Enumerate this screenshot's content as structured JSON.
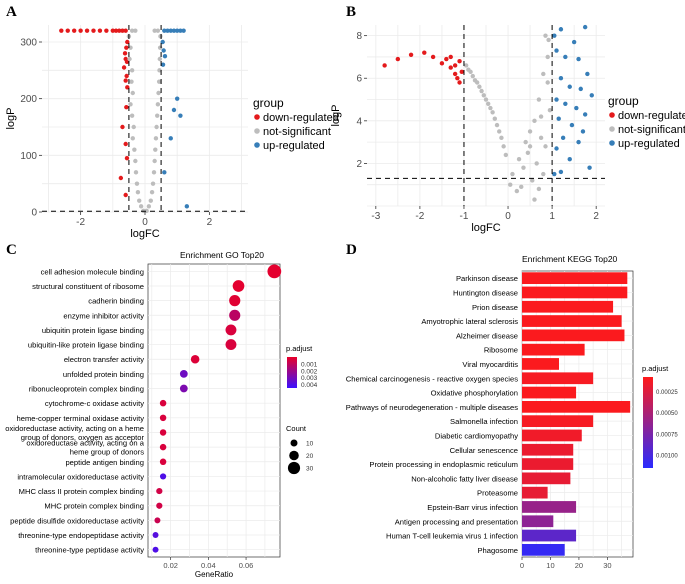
{
  "panels": {
    "A": "A",
    "B": "B",
    "C": "C",
    "D": "D"
  },
  "legend_common": {
    "title": "group",
    "items": [
      "down-regulated",
      "not-significant",
      "up-regulated"
    ],
    "colors": [
      "#e41a1c",
      "#bdbdbd",
      "#377eb8"
    ]
  },
  "chart_data": [
    {
      "id": "A",
      "type": "scatter",
      "title": "",
      "xlabel": "logFC",
      "ylabel": "logP",
      "xlim": [
        -3.2,
        3.2
      ],
      "ylim": [
        0,
        330
      ],
      "xticks": [
        -2,
        0,
        2
      ],
      "yticks": [
        0,
        100,
        200,
        300
      ],
      "thresholds": {
        "x": [
          -0.5,
          0.5
        ],
        "y": 1.3
      },
      "grid": true,
      "legend": "right",
      "series": [
        {
          "name": "down-regulated",
          "color": "#e41a1c",
          "points": [
            [
              -2.6,
              320
            ],
            [
              -2.4,
              320
            ],
            [
              -2.2,
              320
            ],
            [
              -2.0,
              320
            ],
            [
              -1.8,
              320
            ],
            [
              -1.6,
              320
            ],
            [
              -1.4,
              320
            ],
            [
              -1.2,
              320
            ],
            [
              -1.0,
              320
            ],
            [
              -0.9,
              320
            ],
            [
              -0.8,
              320
            ],
            [
              -0.7,
              320
            ],
            [
              -0.6,
              320
            ],
            [
              -0.55,
              300
            ],
            [
              -0.58,
              290
            ],
            [
              -0.62,
              280
            ],
            [
              -0.6,
              270
            ],
            [
              -0.56,
              265
            ],
            [
              -0.65,
              255
            ],
            [
              -0.57,
              240
            ],
            [
              -0.6,
              232
            ],
            [
              -0.55,
              220
            ],
            [
              -0.58,
              185
            ],
            [
              -0.7,
              150
            ],
            [
              -0.6,
              120
            ],
            [
              -0.56,
              95
            ],
            [
              -0.75,
              60
            ],
            [
              -0.6,
              30
            ]
          ]
        },
        {
          "name": "not-significant",
          "color": "#bdbdbd",
          "points": [
            [
              -0.5,
              310
            ],
            [
              -0.45,
              290
            ],
            [
              -0.48,
              270
            ],
            [
              -0.4,
              250
            ],
            [
              -0.42,
              230
            ],
            [
              -0.38,
              210
            ],
            [
              -0.45,
              190
            ],
            [
              -0.4,
              170
            ],
            [
              -0.35,
              150
            ],
            [
              -0.38,
              130
            ],
            [
              -0.33,
              110
            ],
            [
              -0.3,
              90
            ],
            [
              -0.28,
              70
            ],
            [
              -0.25,
              50
            ],
            [
              -0.22,
              35
            ],
            [
              -0.18,
              20
            ],
            [
              -0.12,
              10
            ],
            [
              -0.05,
              2
            ],
            [
              0.05,
              2
            ],
            [
              0.12,
              10
            ],
            [
              0.18,
              20
            ],
            [
              0.22,
              35
            ],
            [
              0.25,
              50
            ],
            [
              0.28,
              70
            ],
            [
              0.3,
              90
            ],
            [
              0.32,
              110
            ],
            [
              0.34,
              130
            ],
            [
              0.36,
              150
            ],
            [
              0.38,
              170
            ],
            [
              0.4,
              190
            ],
            [
              0.42,
              210
            ],
            [
              0.44,
              230
            ],
            [
              0.45,
              250
            ],
            [
              0.46,
              270
            ],
            [
              0.47,
              290
            ],
            [
              0.48,
              310
            ],
            [
              0.3,
              320
            ],
            [
              0.4,
              320
            ],
            [
              -0.3,
              320
            ],
            [
              -0.4,
              320
            ]
          ]
        },
        {
          "name": "up-regulated",
          "color": "#377eb8",
          "points": [
            [
              0.6,
              320
            ],
            [
              0.7,
              320
            ],
            [
              0.8,
              320
            ],
            [
              0.9,
              320
            ],
            [
              1.0,
              320
            ],
            [
              1.1,
              320
            ],
            [
              1.2,
              320
            ],
            [
              0.55,
              300
            ],
            [
              0.58,
              285
            ],
            [
              0.62,
              275
            ],
            [
              0.56,
              260
            ],
            [
              1.0,
              200
            ],
            [
              0.9,
              180
            ],
            [
              1.1,
              170
            ],
            [
              0.8,
              130
            ],
            [
              0.6,
              70
            ],
            [
              1.3,
              10
            ]
          ]
        }
      ]
    },
    {
      "id": "B",
      "type": "scatter",
      "title": "",
      "xlabel": "logFC",
      "ylabel": "logP",
      "xlim": [
        -3.2,
        2.2
      ],
      "ylim": [
        0,
        8.5
      ],
      "xticks": [
        -3,
        -2,
        -1,
        0,
        1,
        2
      ],
      "yticks": [
        2,
        4,
        6,
        8
      ],
      "thresholds": {
        "x": [
          -1,
          1
        ],
        "y": 1.3
      },
      "grid": true,
      "legend": "right",
      "series": [
        {
          "name": "down-regulated",
          "color": "#e41a1c",
          "points": [
            [
              -2.8,
              6.6
            ],
            [
              -2.5,
              6.9
            ],
            [
              -2.2,
              7.1
            ],
            [
              -1.9,
              7.2
            ],
            [
              -1.7,
              7.0
            ],
            [
              -1.5,
              6.7
            ],
            [
              -1.4,
              6.9
            ],
            [
              -1.3,
              6.5
            ],
            [
              -1.2,
              6.2
            ],
            [
              -1.1,
              6.8
            ],
            [
              -1.05,
              6.3
            ],
            [
              -1.2,
              6.6
            ],
            [
              -1.15,
              6.0
            ],
            [
              -1.3,
              7.0
            ],
            [
              -1.1,
              5.8
            ]
          ]
        },
        {
          "name": "not-significant",
          "color": "#bdbdbd",
          "points": [
            [
              -0.95,
              6.6
            ],
            [
              -0.9,
              6.4
            ],
            [
              -0.85,
              6.3
            ],
            [
              -0.8,
              6.1
            ],
            [
              -0.75,
              5.9
            ],
            [
              -0.7,
              5.8
            ],
            [
              -0.65,
              5.6
            ],
            [
              -0.6,
              5.4
            ],
            [
              -0.55,
              5.2
            ],
            [
              -0.5,
              5.0
            ],
            [
              -0.45,
              4.8
            ],
            [
              -0.4,
              4.6
            ],
            [
              -0.35,
              4.4
            ],
            [
              -0.3,
              4.1
            ],
            [
              -0.25,
              3.8
            ],
            [
              -0.2,
              3.5
            ],
            [
              -0.15,
              3.2
            ],
            [
              -0.1,
              2.8
            ],
            [
              -0.05,
              2.4
            ],
            [
              0.05,
              1.0
            ],
            [
              0.1,
              1.5
            ],
            [
              0.2,
              0.7
            ],
            [
              0.25,
              2.2
            ],
            [
              0.3,
              0.9
            ],
            [
              0.35,
              1.8
            ],
            [
              0.4,
              3.0
            ],
            [
              0.45,
              2.5
            ],
            [
              0.5,
              3.5
            ],
            [
              0.55,
              1.2
            ],
            [
              0.6,
              4.0
            ],
            [
              0.65,
              2.0
            ],
            [
              0.7,
              5.0
            ],
            [
              0.75,
              3.2
            ],
            [
              0.8,
              6.2
            ],
            [
              0.85,
              2.8
            ],
            [
              0.9,
              7.0
            ],
            [
              0.95,
              4.5
            ],
            [
              0.92,
              7.8
            ],
            [
              0.85,
              8.0
            ],
            [
              0.6,
              0.3
            ],
            [
              0.8,
              1.5
            ],
            [
              0.7,
              0.8
            ],
            [
              0.9,
              5.8
            ],
            [
              0.5,
              2.8
            ],
            [
              0.75,
              4.2
            ]
          ]
        },
        {
          "name": "up-regulated",
          "color": "#377eb8",
          "points": [
            [
              1.05,
              8.0
            ],
            [
              1.2,
              8.3
            ],
            [
              1.5,
              7.7
            ],
            [
              1.75,
              8.4
            ],
            [
              1.1,
              7.3
            ],
            [
              1.3,
              7.0
            ],
            [
              1.6,
              6.9
            ],
            [
              1.8,
              6.2
            ],
            [
              1.2,
              6.0
            ],
            [
              1.4,
              5.6
            ],
            [
              1.65,
              5.5
            ],
            [
              1.9,
              5.2
            ],
            [
              1.1,
              5.0
            ],
            [
              1.3,
              4.8
            ],
            [
              1.55,
              4.6
            ],
            [
              1.75,
              4.3
            ],
            [
              1.15,
              4.1
            ],
            [
              1.45,
              3.8
            ],
            [
              1.7,
              3.5
            ],
            [
              1.25,
              3.2
            ],
            [
              1.6,
              3.0
            ],
            [
              1.1,
              2.7
            ],
            [
              1.4,
              2.2
            ],
            [
              1.85,
              1.8
            ],
            [
              1.2,
              1.6
            ],
            [
              1.05,
              1.5
            ]
          ]
        }
      ]
    },
    {
      "id": "C",
      "type": "scatter",
      "title": "Enrichment GO Top20",
      "xlabel": "GeneRatio",
      "ylabel": "",
      "xlim": [
        0.008,
        0.078
      ],
      "xticks": [
        0.02,
        0.04,
        0.06
      ],
      "xtick_labels": [
        "0.02",
        "0.04",
        "0.06"
      ],
      "grid": true,
      "legend": "right",
      "color_legend": {
        "title": "p.adjust",
        "ticks": [
          "0.001",
          "0.002",
          "0.003",
          "0.004"
        ],
        "tick_values": [
          0.001,
          0.002,
          0.003,
          0.004
        ],
        "range": [
          0.0,
          0.0045
        ],
        "low_color": "#e8002a",
        "high_color": "#3b10ff"
      },
      "size_legend": {
        "title": "Count",
        "values": [
          10,
          20,
          30
        ],
        "labels": [
          "10",
          "20",
          "30"
        ]
      },
      "categories": [
        "cell adhesion molecule binding",
        "structural constituent of ribosome",
        "cadherin binding",
        "enzyme inhibitor activity",
        "ubiquitin protein ligase binding",
        "ubiquitin-like protein ligase binding",
        "electron transfer activity",
        "unfolded protein binding",
        "ribonucleoprotein complex binding",
        "cytochrome-c oxidase activity",
        "heme-copper terminal oxidase activity",
        "oxidoreductase activity, acting on a heme group of donors, oxygen as acceptor",
        "oxidoreductase activity, acting on a heme group of donors",
        "peptide antigen binding",
        "intramolecular oxidoreductase activity",
        "MHC class II protein complex binding",
        "MHC protein complex binding",
        "peptide disulfide oxidoreductase activity",
        "threonine-type endopeptidase activity",
        "threonine-type peptidase activity"
      ],
      "category_lines": [
        [
          "cell adhesion molecule binding"
        ],
        [
          "structural constituent of ribosome"
        ],
        [
          "cadherin binding"
        ],
        [
          "enzyme inhibitor activity"
        ],
        [
          "ubiquitin protein ligase binding"
        ],
        [
          "ubiquitin-like protein ligase binding"
        ],
        [
          "electron transfer activity"
        ],
        [
          "unfolded protein binding"
        ],
        [
          "ribonucleoprotein complex binding"
        ],
        [
          "cytochrome-c oxidase activity"
        ],
        [
          "heme-copper terminal oxidase activity"
        ],
        [
          "oxidoreductase activity, acting on a heme",
          "group of donors, oxygen as acceptor"
        ],
        [
          "oxidoreductase activity, acting on a",
          "heme group of donors"
        ],
        [
          "peptide antigen binding"
        ],
        [
          "intramolecular oxidoreductase activity"
        ],
        [
          "MHC class II protein complex binding"
        ],
        [
          "MHC protein complex binding"
        ],
        [
          "peptide disulfide oxidoreductase activity"
        ],
        [
          "threonine-type endopeptidase activity"
        ],
        [
          "threonine-type peptidase activity"
        ]
      ],
      "gene_ratio": [
        0.075,
        0.056,
        0.054,
        0.054,
        0.052,
        0.052,
        0.033,
        0.027,
        0.027,
        0.016,
        0.016,
        0.016,
        0.016,
        0.016,
        0.016,
        0.014,
        0.014,
        0.013,
        0.012,
        0.012
      ],
      "count": [
        36,
        28,
        26,
        26,
        25,
        25,
        16,
        13,
        13,
        8,
        8,
        8,
        8,
        8,
        7,
        7,
        7,
        6,
        6,
        6
      ],
      "p_adjust": [
        0.0001,
        0.0001,
        0.0002,
        0.0012,
        0.0004,
        0.0004,
        0.0003,
        0.0032,
        0.0028,
        0.0004,
        0.0004,
        0.0004,
        0.0004,
        0.0004,
        0.004,
        0.0006,
        0.0006,
        0.0008,
        0.0038,
        0.004
      ]
    },
    {
      "id": "D",
      "type": "bar",
      "orientation": "horizontal",
      "title": "Enrichment KEGG Top20",
      "xlabel": "",
      "ylabel": "",
      "xlim": [
        0,
        39
      ],
      "xticks": [
        0,
        10,
        20,
        30
      ],
      "grid": true,
      "legend": "right",
      "color_legend": {
        "title": "p.adjust",
        "ticks": [
          "0.00025",
          "0.00050",
          "0.00075",
          "0.00100"
        ],
        "tick_values": [
          0.00025,
          0.0005,
          0.00075,
          0.001
        ],
        "range": [
          8e-05,
          0.00115
        ],
        "low_color": "#ff1a1a",
        "high_color": "#2a2aff"
      },
      "categories": [
        "Parkinson disease",
        "Huntington disease",
        "Prion disease",
        "Amyotrophic lateral sclerosis",
        "Alzheimer disease",
        "Ribosome",
        "Viral myocarditis",
        "Chemical carcinogenesis - reactive oxygen species",
        "Oxidative phosphorylation",
        "Pathways of neurodegeneration - multiple diseases",
        "Salmonella infection",
        "Diabetic cardiomyopathy",
        "Cellular senescence",
        "Protein processing in endoplasmic reticulum",
        "Non-alcoholic fatty liver disease",
        "Proteasome",
        "Epstein-Barr virus infection",
        "Antigen processing and presentation",
        "Human T-cell leukemia virus 1 infection",
        "Phagosome"
      ],
      "values": [
        37,
        37,
        32,
        35,
        36,
        22,
        13,
        25,
        19,
        38,
        25,
        21,
        18,
        18,
        17,
        9,
        19,
        11,
        19,
        15
      ],
      "p_adjust": [
        0.0001,
        0.0001,
        0.0001,
        0.0001,
        0.0001,
        0.0001,
        0.0001,
        0.00012,
        0.0001,
        0.0001,
        0.00012,
        0.00015,
        0.00018,
        0.00018,
        0.0002,
        0.0002,
        0.0006,
        0.00065,
        0.0009,
        0.0011
      ]
    }
  ]
}
